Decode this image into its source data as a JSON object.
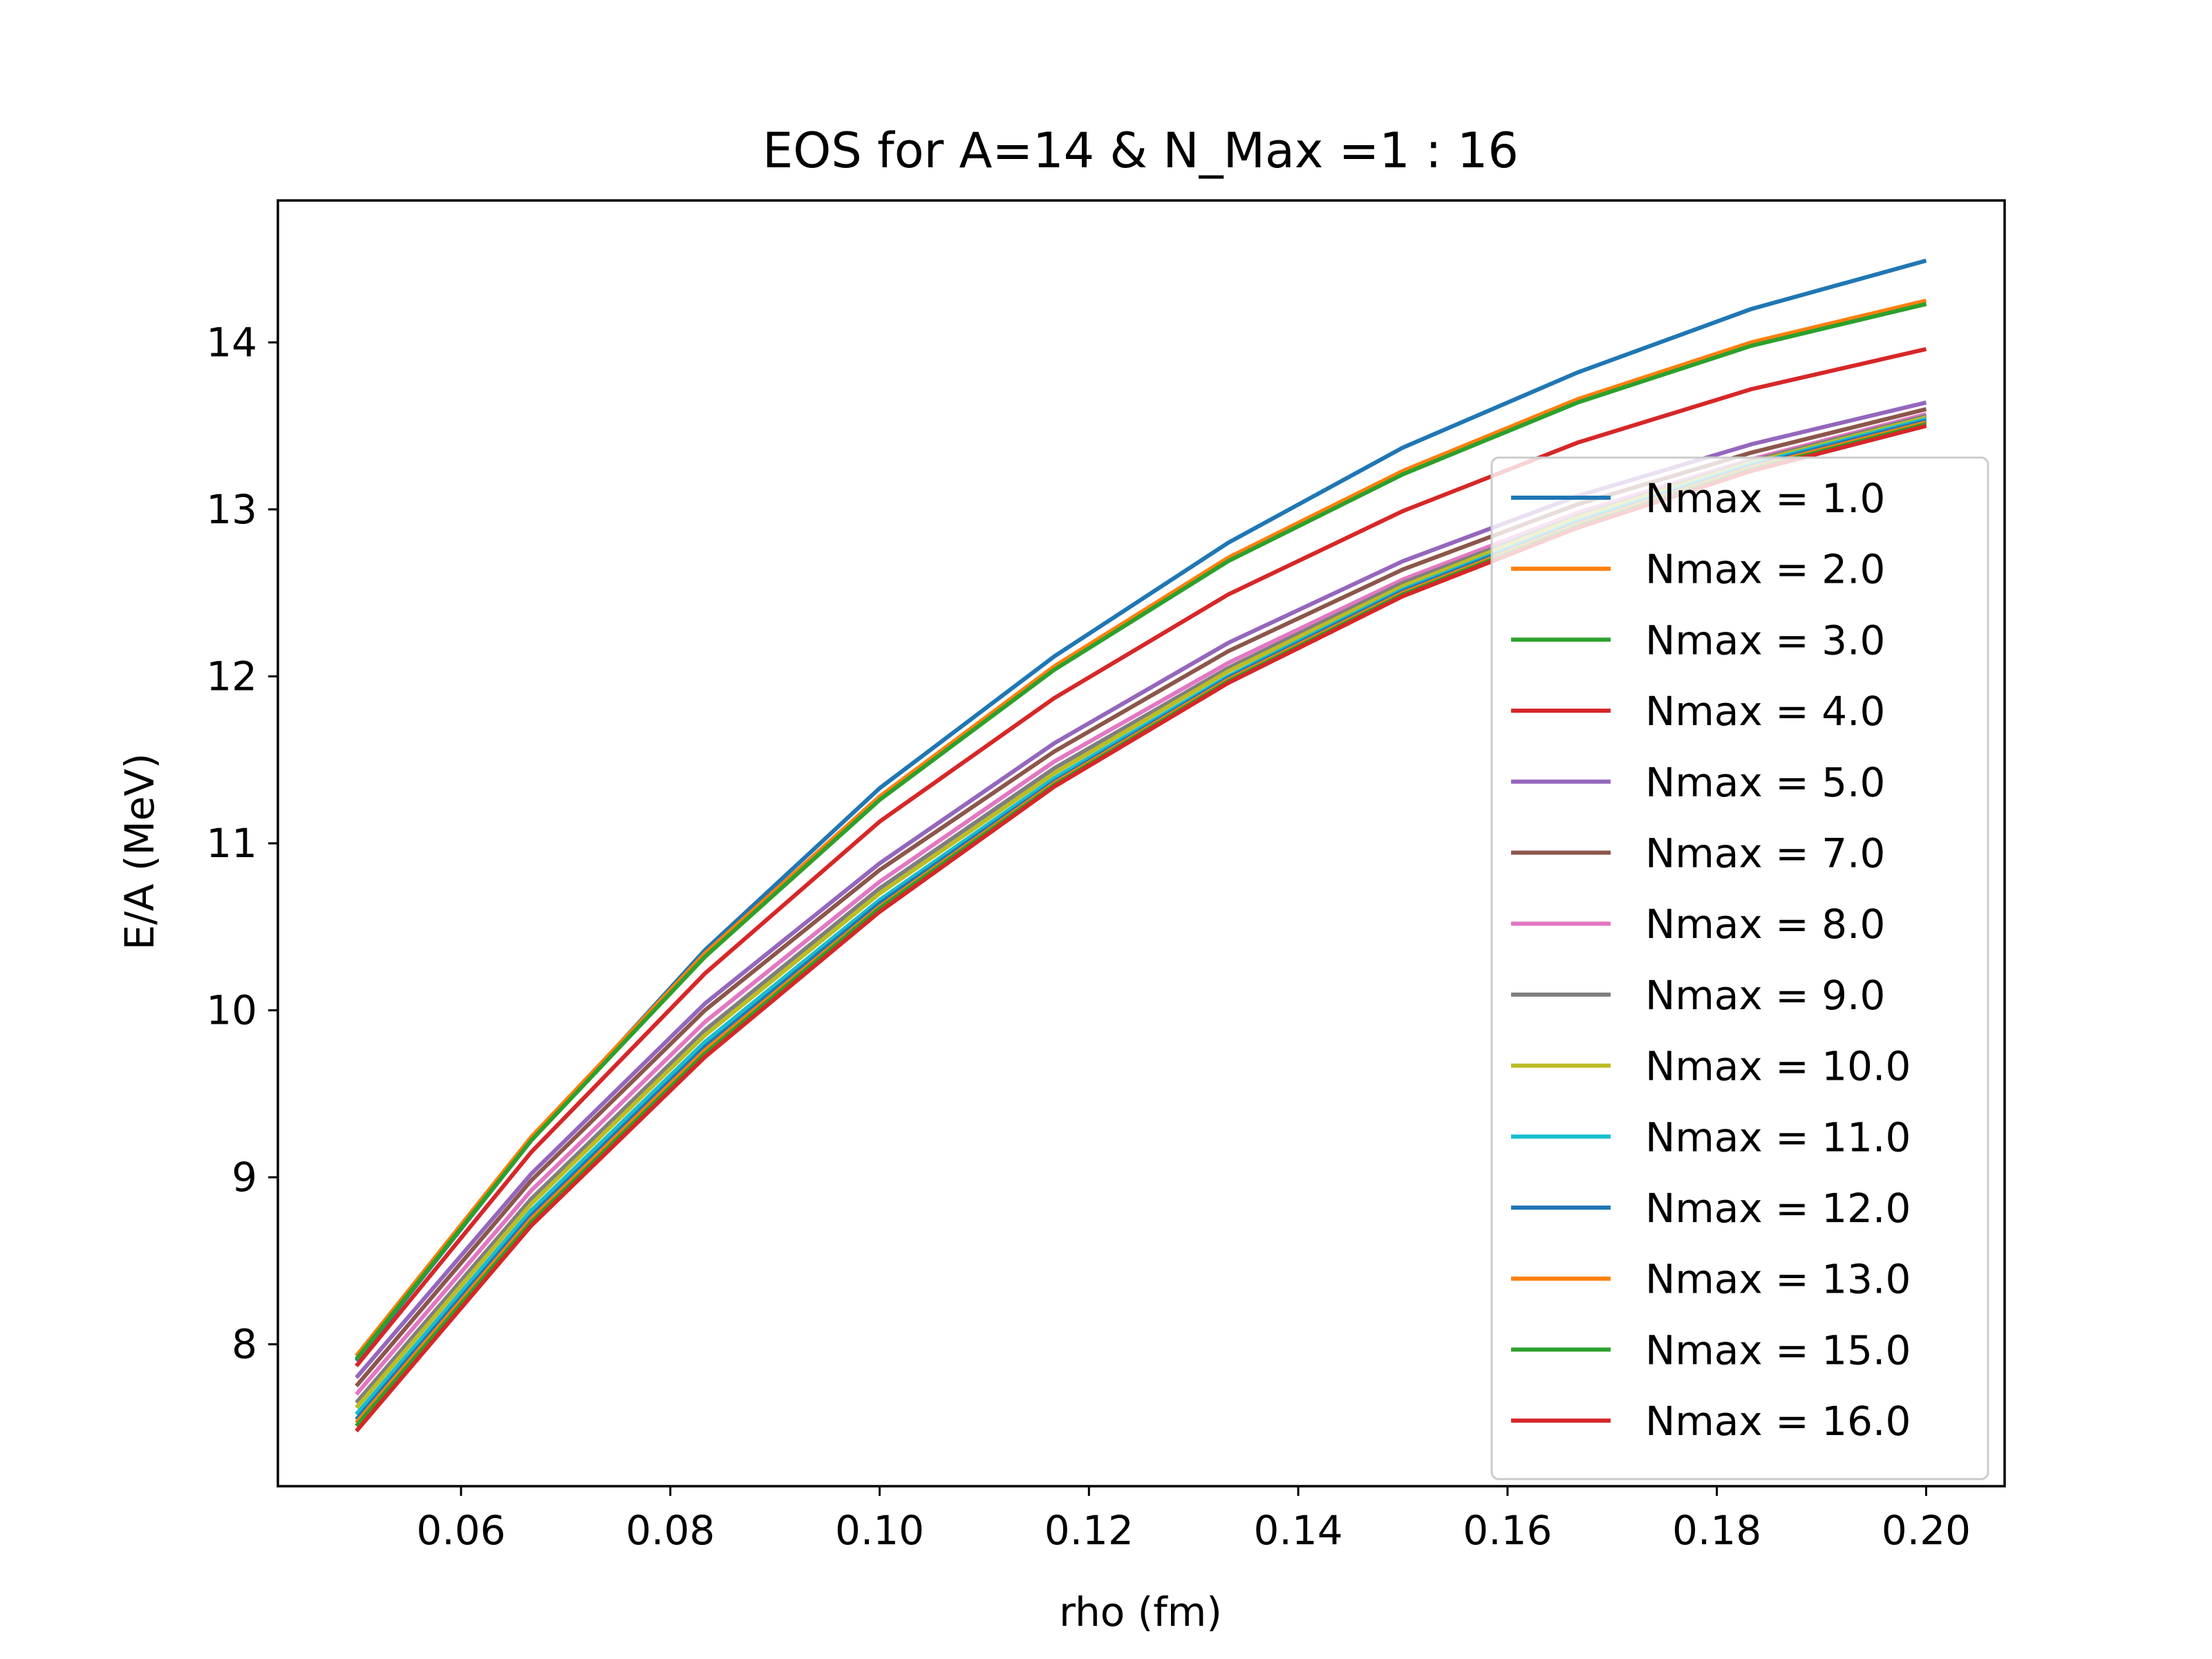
{
  "chart_data": {
    "type": "line",
    "title": "EOS for A=14 & N_Max =1 : 16",
    "xlabel": "rho (fm)",
    "ylabel": "E/A (MeV)",
    "xlim": [
      0.0425,
      0.2075
    ],
    "ylim": [
      7.15,
      14.85
    ],
    "xticks": [
      0.06,
      0.08,
      0.1,
      0.12,
      0.14,
      0.16,
      0.18,
      0.2
    ],
    "xtick_labels": [
      "0.06",
      "0.08",
      "0.10",
      "0.12",
      "0.14",
      "0.16",
      "0.18",
      "0.20"
    ],
    "yticks": [
      8,
      9,
      10,
      11,
      12,
      13,
      14
    ],
    "ytick_labels": [
      "8",
      "9",
      "10",
      "11",
      "12",
      "13",
      "14"
    ],
    "grid": false,
    "legend_position": "center-right",
    "x": [
      0.05,
      0.0667,
      0.0833,
      0.1,
      0.1167,
      0.1333,
      0.15,
      0.1667,
      0.1833,
      0.2
    ],
    "series": [
      {
        "name": "Nmax = 1.0",
        "color": "#1f77b4",
        "values": [
          7.9,
          9.22,
          10.36,
          11.33,
          12.12,
          12.8,
          13.37,
          13.82,
          14.2,
          14.49
        ]
      },
      {
        "name": "Nmax = 2.0",
        "color": "#ff7f0e",
        "values": [
          7.93,
          9.24,
          10.34,
          11.28,
          12.06,
          12.71,
          13.23,
          13.66,
          14.0,
          14.25
        ]
      },
      {
        "name": "Nmax = 3.0",
        "color": "#2ca02c",
        "values": [
          7.91,
          9.22,
          10.32,
          11.26,
          12.04,
          12.69,
          13.21,
          13.64,
          13.98,
          14.23
        ]
      },
      {
        "name": "Nmax = 4.0",
        "color": "#d62728",
        "values": [
          7.87,
          9.15,
          10.22,
          11.13,
          11.87,
          12.49,
          12.99,
          13.4,
          13.72,
          13.96
        ]
      },
      {
        "name": "Nmax = 5.0",
        "color": "#9467bd",
        "values": [
          7.8,
          9.02,
          10.04,
          10.88,
          11.6,
          12.2,
          12.69,
          13.08,
          13.39,
          13.64
        ]
      },
      {
        "name": "Nmax = 7.0",
        "color": "#8c564b",
        "values": [
          7.75,
          8.98,
          10.0,
          10.84,
          11.55,
          12.15,
          12.64,
          13.03,
          13.34,
          13.6
        ]
      },
      {
        "name": "Nmax = 8.0",
        "color": "#e377c2",
        "values": [
          7.7,
          8.92,
          9.93,
          10.77,
          11.49,
          12.08,
          12.58,
          12.98,
          13.3,
          13.57
        ]
      },
      {
        "name": "Nmax = 9.0",
        "color": "#7f7f7f",
        "values": [
          7.65,
          8.87,
          9.88,
          10.73,
          11.45,
          12.05,
          12.56,
          12.96,
          13.29,
          13.56
        ]
      },
      {
        "name": "Nmax = 10.0",
        "color": "#bcbd22",
        "values": [
          7.62,
          8.84,
          9.85,
          10.7,
          11.42,
          12.03,
          12.54,
          12.95,
          13.28,
          13.55
        ]
      },
      {
        "name": "Nmax = 11.0",
        "color": "#17becf",
        "values": [
          7.58,
          8.8,
          9.81,
          10.66,
          11.39,
          12.0,
          12.52,
          12.93,
          13.27,
          13.54
        ]
      },
      {
        "name": "Nmax = 12.0",
        "color": "#1f77b4",
        "values": [
          7.55,
          8.77,
          9.78,
          10.64,
          11.37,
          11.99,
          12.51,
          12.92,
          13.26,
          13.53
        ]
      },
      {
        "name": "Nmax = 13.0",
        "color": "#ff7f0e",
        "values": [
          7.53,
          8.75,
          9.76,
          10.62,
          11.36,
          11.98,
          12.5,
          12.91,
          13.25,
          13.52
        ]
      },
      {
        "name": "Nmax = 15.0",
        "color": "#2ca02c",
        "values": [
          7.51,
          8.73,
          9.74,
          10.61,
          11.35,
          11.97,
          12.49,
          12.9,
          13.24,
          13.51
        ]
      },
      {
        "name": "Nmax = 16.0",
        "color": "#d62728",
        "values": [
          7.48,
          8.71,
          9.72,
          10.59,
          11.34,
          11.96,
          12.48,
          12.89,
          13.23,
          13.5
        ]
      }
    ]
  }
}
